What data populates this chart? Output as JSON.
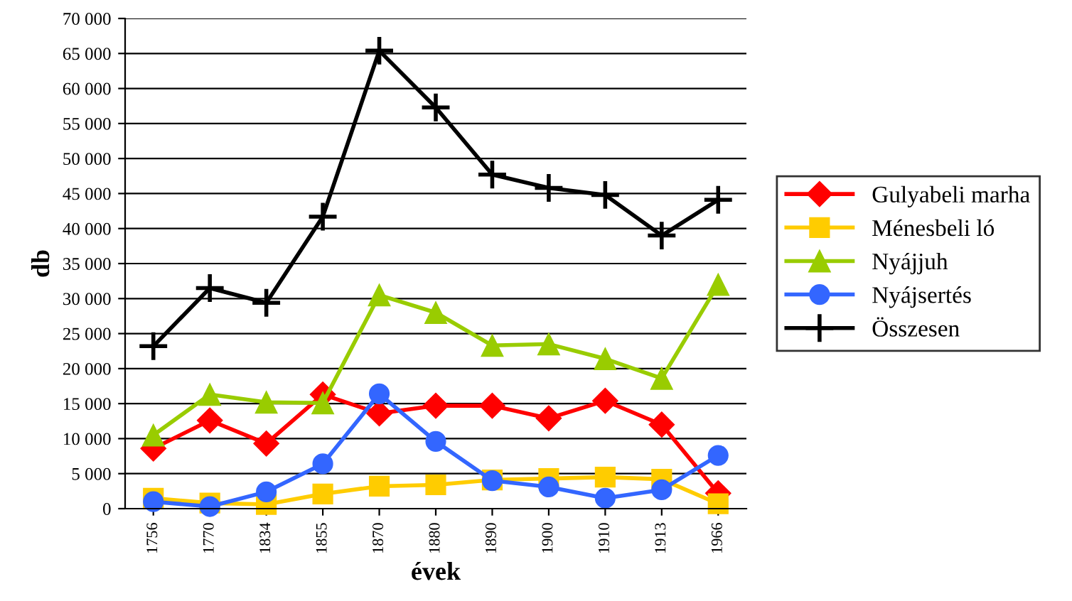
{
  "chart_data": {
    "type": "line",
    "xlabel": "évek",
    "ylabel": "db",
    "categories": [
      "1756",
      "1770",
      "1834",
      "1855",
      "1870",
      "1880",
      "1890",
      "1900",
      "1910",
      "1913",
      "1966"
    ],
    "series": [
      {
        "name": "Gulyabeli marha",
        "color": "#ff0000",
        "marker": "diamond",
        "values": [
          8600,
          12600,
          9300,
          16300,
          13600,
          14700,
          14700,
          12900,
          15400,
          12000,
          2200
        ]
      },
      {
        "name": "Ménesbeli ló",
        "color": "#ffcc00",
        "marker": "square",
        "values": [
          1500,
          800,
          600,
          2100,
          3200,
          3400,
          4100,
          4300,
          4500,
          4200,
          700
        ]
      },
      {
        "name": "Nyájjuh",
        "color": "#99cc00",
        "marker": "triangle",
        "values": [
          10500,
          16300,
          15200,
          15100,
          30500,
          28000,
          23300,
          23500,
          21400,
          18600,
          32000
        ]
      },
      {
        "name": "Nyájsertés",
        "color": "#3366ff",
        "marker": "circle",
        "values": [
          1000,
          300,
          2400,
          6400,
          16400,
          9600,
          4000,
          3100,
          1500,
          2700,
          7600
        ]
      },
      {
        "name": "Összesen",
        "color": "#000000",
        "marker": "cross",
        "values": [
          23200,
          31500,
          29400,
          41700,
          65400,
          57300,
          47700,
          45800,
          44800,
          39000,
          44100
        ]
      }
    ],
    "ylim": [
      0,
      70000
    ],
    "yticks": [
      0,
      {
        "value": 5000,
        "label": "5 000"
      },
      {
        "value": 10000,
        "label": "10 000"
      },
      {
        "value": 15000,
        "label": "15 000"
      },
      {
        "value": 20000,
        "label": "20 000"
      },
      {
        "value": 25000,
        "label": "25 000"
      },
      {
        "value": 30000,
        "label": "30 000"
      },
      {
        "value": 35000,
        "label": "35 000"
      },
      {
        "value": 40000,
        "label": "40 000"
      },
      {
        "value": 45000,
        "label": "45 000"
      },
      {
        "value": 50000,
        "label": "50 000"
      },
      {
        "value": 55000,
        "label": "55 000"
      },
      {
        "value": 60000,
        "label": "60 000"
      },
      {
        "value": 65000,
        "label": "65 000"
      },
      {
        "value": 70000,
        "label": "70 000"
      }
    ],
    "grid": "y",
    "legend": "right",
    "line_style": "solid"
  }
}
